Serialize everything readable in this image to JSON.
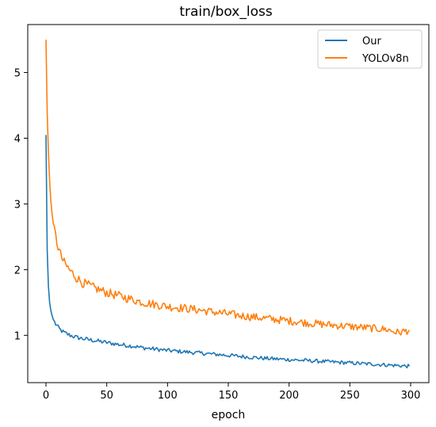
{
  "chart_data": {
    "type": "line",
    "title": "train/box_loss",
    "xlabel": "epoch",
    "ylabel": "",
    "xlim": [
      -15,
      315
    ],
    "ylim": [
      0.28,
      5.73
    ],
    "xticks": [
      0,
      50,
      100,
      150,
      200,
      250,
      300
    ],
    "yticks": [
      1,
      2,
      3,
      4,
      5
    ],
    "grid": false,
    "legend_position": "top-right",
    "series": [
      {
        "name": "Our",
        "color": "#1f77b4",
        "noise": 0.012,
        "x": [
          0,
          1,
          2,
          3,
          4,
          5,
          6,
          8,
          10,
          12,
          15,
          20,
          25,
          30,
          40,
          50,
          60,
          70,
          80,
          90,
          100,
          120,
          140,
          160,
          180,
          200,
          220,
          240,
          260,
          280,
          299
        ],
        "y": [
          4.05,
          2.3,
          1.75,
          1.5,
          1.38,
          1.3,
          1.24,
          1.17,
          1.12,
          1.08,
          1.04,
          1.0,
          0.97,
          0.95,
          0.92,
          0.89,
          0.86,
          0.84,
          0.81,
          0.79,
          0.77,
          0.74,
          0.71,
          0.68,
          0.65,
          0.63,
          0.61,
          0.59,
          0.57,
          0.55,
          0.53
        ]
      },
      {
        "name": "YOLOv8n",
        "color": "#ff7f0e",
        "noise": 0.02,
        "x": [
          0,
          1,
          2,
          3,
          4,
          5,
          6,
          8,
          10,
          12,
          15,
          20,
          25,
          30,
          40,
          50,
          60,
          70,
          80,
          90,
          100,
          120,
          140,
          160,
          180,
          200,
          220,
          240,
          260,
          280,
          290,
          299
        ],
        "y": [
          5.5,
          4.4,
          3.8,
          3.35,
          3.05,
          2.85,
          2.7,
          2.5,
          2.35,
          2.22,
          2.1,
          1.98,
          1.88,
          1.8,
          1.72,
          1.65,
          1.6,
          1.55,
          1.5,
          1.47,
          1.44,
          1.4,
          1.35,
          1.3,
          1.26,
          1.22,
          1.18,
          1.15,
          1.12,
          1.09,
          1.04,
          1.08
        ]
      }
    ]
  }
}
